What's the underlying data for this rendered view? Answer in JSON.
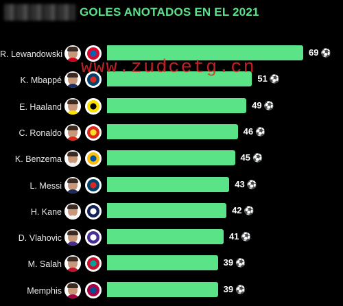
{
  "chart_data": {
    "type": "bar",
    "orientation": "horizontal",
    "title": "GOLES ANOTADOS EN EL 2021",
    "categories": [
      "R. Lewandowski",
      "K. Mbappé",
      "E. Haaland",
      "C. Ronaldo",
      "K. Benzema",
      "L. Messi",
      "H. Kane",
      "D. Vlahovic",
      "M. Salah",
      "Memphis"
    ],
    "values": [
      69,
      51,
      49,
      46,
      45,
      43,
      42,
      41,
      39,
      39
    ],
    "data_labels": [
      "69",
      "51",
      "49",
      "46",
      "45",
      "43",
      "42",
      "41",
      "39",
      "39"
    ],
    "xlim": [
      0,
      69
    ],
    "grid": false,
    "legend": "none"
  },
  "colors": {
    "bar": "#5be387",
    "title": "#5be387",
    "background": "#000000",
    "label": "#e9e9e9",
    "value": "#ffffff",
    "watermark": "#e62828"
  },
  "icons": {
    "ball": "soccer-ball-icon",
    "avatar": "player-photo-icon",
    "badge": "club-crest-icon"
  },
  "ball_glyph": "⚽",
  "watermark": "www.zudcetg.cn",
  "players": [
    {
      "shirt": "#d0021b",
      "crest": [
        "#dc052d",
        "#0066b2"
      ]
    },
    {
      "shirt": "#1a2b5c",
      "crest": [
        "#004170",
        "#da291c"
      ]
    },
    {
      "shirt": "#fde100",
      "crest": [
        "#fde100",
        "#000000"
      ]
    },
    {
      "shirt": "#da291c",
      "crest": [
        "#da291c",
        "#fbe122"
      ]
    },
    {
      "shirt": "#f2f2f2",
      "crest": [
        "#febe10",
        "#00529f"
      ]
    },
    {
      "shirt": "#1a2b5c",
      "crest": [
        "#004170",
        "#da291c"
      ]
    },
    {
      "shirt": "#f5f5f5",
      "crest": [
        "#132257",
        "#ffffff"
      ]
    },
    {
      "shirt": "#482e92",
      "crest": [
        "#482e92",
        "#ffffff"
      ]
    },
    {
      "shirt": "#c8102e",
      "crest": [
        "#c8102e",
        "#00a398"
      ]
    },
    {
      "shirt": "#a50044",
      "crest": [
        "#a50044",
        "#004d98"
      ]
    }
  ]
}
